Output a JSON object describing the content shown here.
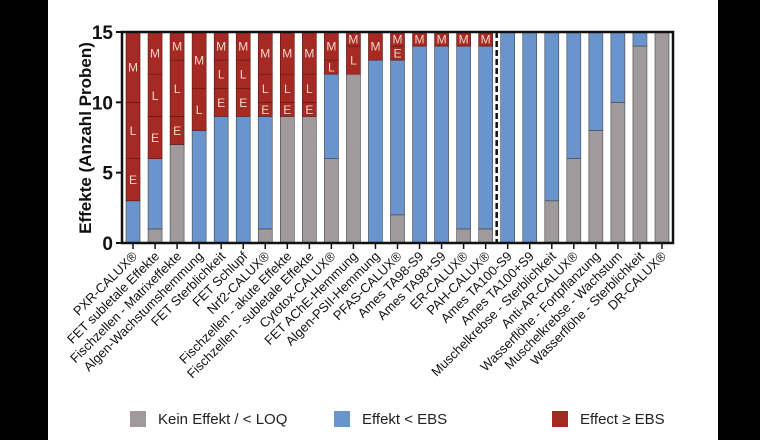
{
  "chart_data": {
    "type": "bar",
    "stacked": true,
    "ylabel": "Effekte (Anzahl Proben)",
    "ylim": [
      0,
      15
    ],
    "yticks": [
      0,
      5,
      10,
      15
    ],
    "grid": false,
    "legend_position": "bottom",
    "separator_after_index": 16,
    "categories": [
      "PXR-CALUX®",
      "FET subletale Effekte",
      "Fischzellen - Matrixeffekte",
      "Algen-Wachstumshemmung",
      "FET Sterblichkeit",
      "FET Schlupf",
      "Nrf2-CALUX®",
      "Fischzellen - akute Effekte",
      "Fischzellen - subletale Effekte",
      "Cytotox-CALUX®",
      "FET AChE-Hemmung",
      "Algen-PSII-Hemmung",
      "PFAS-CALUX®",
      "Ames TA98-S9",
      "Ames TA98+S9",
      "ER-CALUX®",
      "PAH-CALUX®",
      "Ames TA100-S9",
      "Ames TA100+S9",
      "Muschelkrebse - Sterblichkeit",
      "Anti-AR-CALUX®",
      "Wasserflöhe - Fortpflanzung",
      "Muschelkrebse - Wachstum",
      "Wasserflöhe - Sterblichkeit",
      "DR-CALUX®"
    ],
    "series": [
      {
        "name": "Kein Effekt / < LOQ",
        "color": "#a09a9c",
        "values": [
          0,
          1,
          7,
          0,
          0,
          0,
          1,
          9,
          9,
          6,
          12,
          0,
          2,
          0,
          0,
          1,
          1,
          0,
          0,
          3,
          6,
          8,
          10,
          14,
          15
        ]
      },
      {
        "name": "Effekt < EBS",
        "color": "#6a95cc",
        "values": [
          3,
          5,
          0,
          8,
          9,
          9,
          8,
          0,
          0,
          6,
          0,
          13,
          11,
          14,
          14,
          13,
          13,
          15,
          15,
          12,
          9,
          7,
          5,
          1,
          0
        ]
      },
      {
        "name": "Effect ≥ EBS",
        "color": "#a52a24",
        "values": [
          12,
          9,
          8,
          7,
          6,
          6,
          6,
          6,
          6,
          3,
          3,
          2,
          2,
          1,
          1,
          1,
          1,
          0,
          0,
          0,
          0,
          0,
          0,
          0,
          0
        ],
        "breakdown": [
          [
            [
              "E",
              3
            ],
            [
              "L",
              4
            ],
            [
              "M",
              5
            ]
          ],
          [
            [
              "E",
              3
            ],
            [
              "L",
              3
            ],
            [
              "M",
              3
            ]
          ],
          [
            [
              "E",
              2
            ],
            [
              "L",
              4
            ],
            [
              "M",
              2
            ]
          ],
          [
            [
              "L",
              3
            ],
            [
              "M",
              4
            ]
          ],
          [
            [
              "E",
              2
            ],
            [
              "L",
              2
            ],
            [
              "M",
              2
            ]
          ],
          [
            [
              "E",
              2
            ],
            [
              "L",
              2
            ],
            [
              "M",
              2
            ]
          ],
          [
            [
              "E",
              1
            ],
            [
              "L",
              2
            ],
            [
              "M",
              3
            ]
          ],
          [
            [
              "E",
              1
            ],
            [
              "L",
              2
            ],
            [
              "M",
              3
            ]
          ],
          [
            [
              "E",
              1
            ],
            [
              "L",
              2
            ],
            [
              "M",
              3
            ]
          ],
          [
            [
              "L",
              1
            ],
            [
              "M",
              2
            ]
          ],
          [
            [
              "L",
              2
            ],
            [
              "M",
              1
            ]
          ],
          [
            [
              "M",
              2
            ]
          ],
          [
            [
              "E",
              1
            ],
            [
              "M",
              1
            ]
          ],
          [
            [
              "M",
              1
            ]
          ],
          [
            [
              "M",
              1
            ]
          ],
          [
            [
              "M",
              1
            ]
          ],
          [
            [
              "M",
              1
            ]
          ],
          [],
          [],
          [],
          [],
          [],
          [],
          [],
          []
        ]
      }
    ]
  }
}
